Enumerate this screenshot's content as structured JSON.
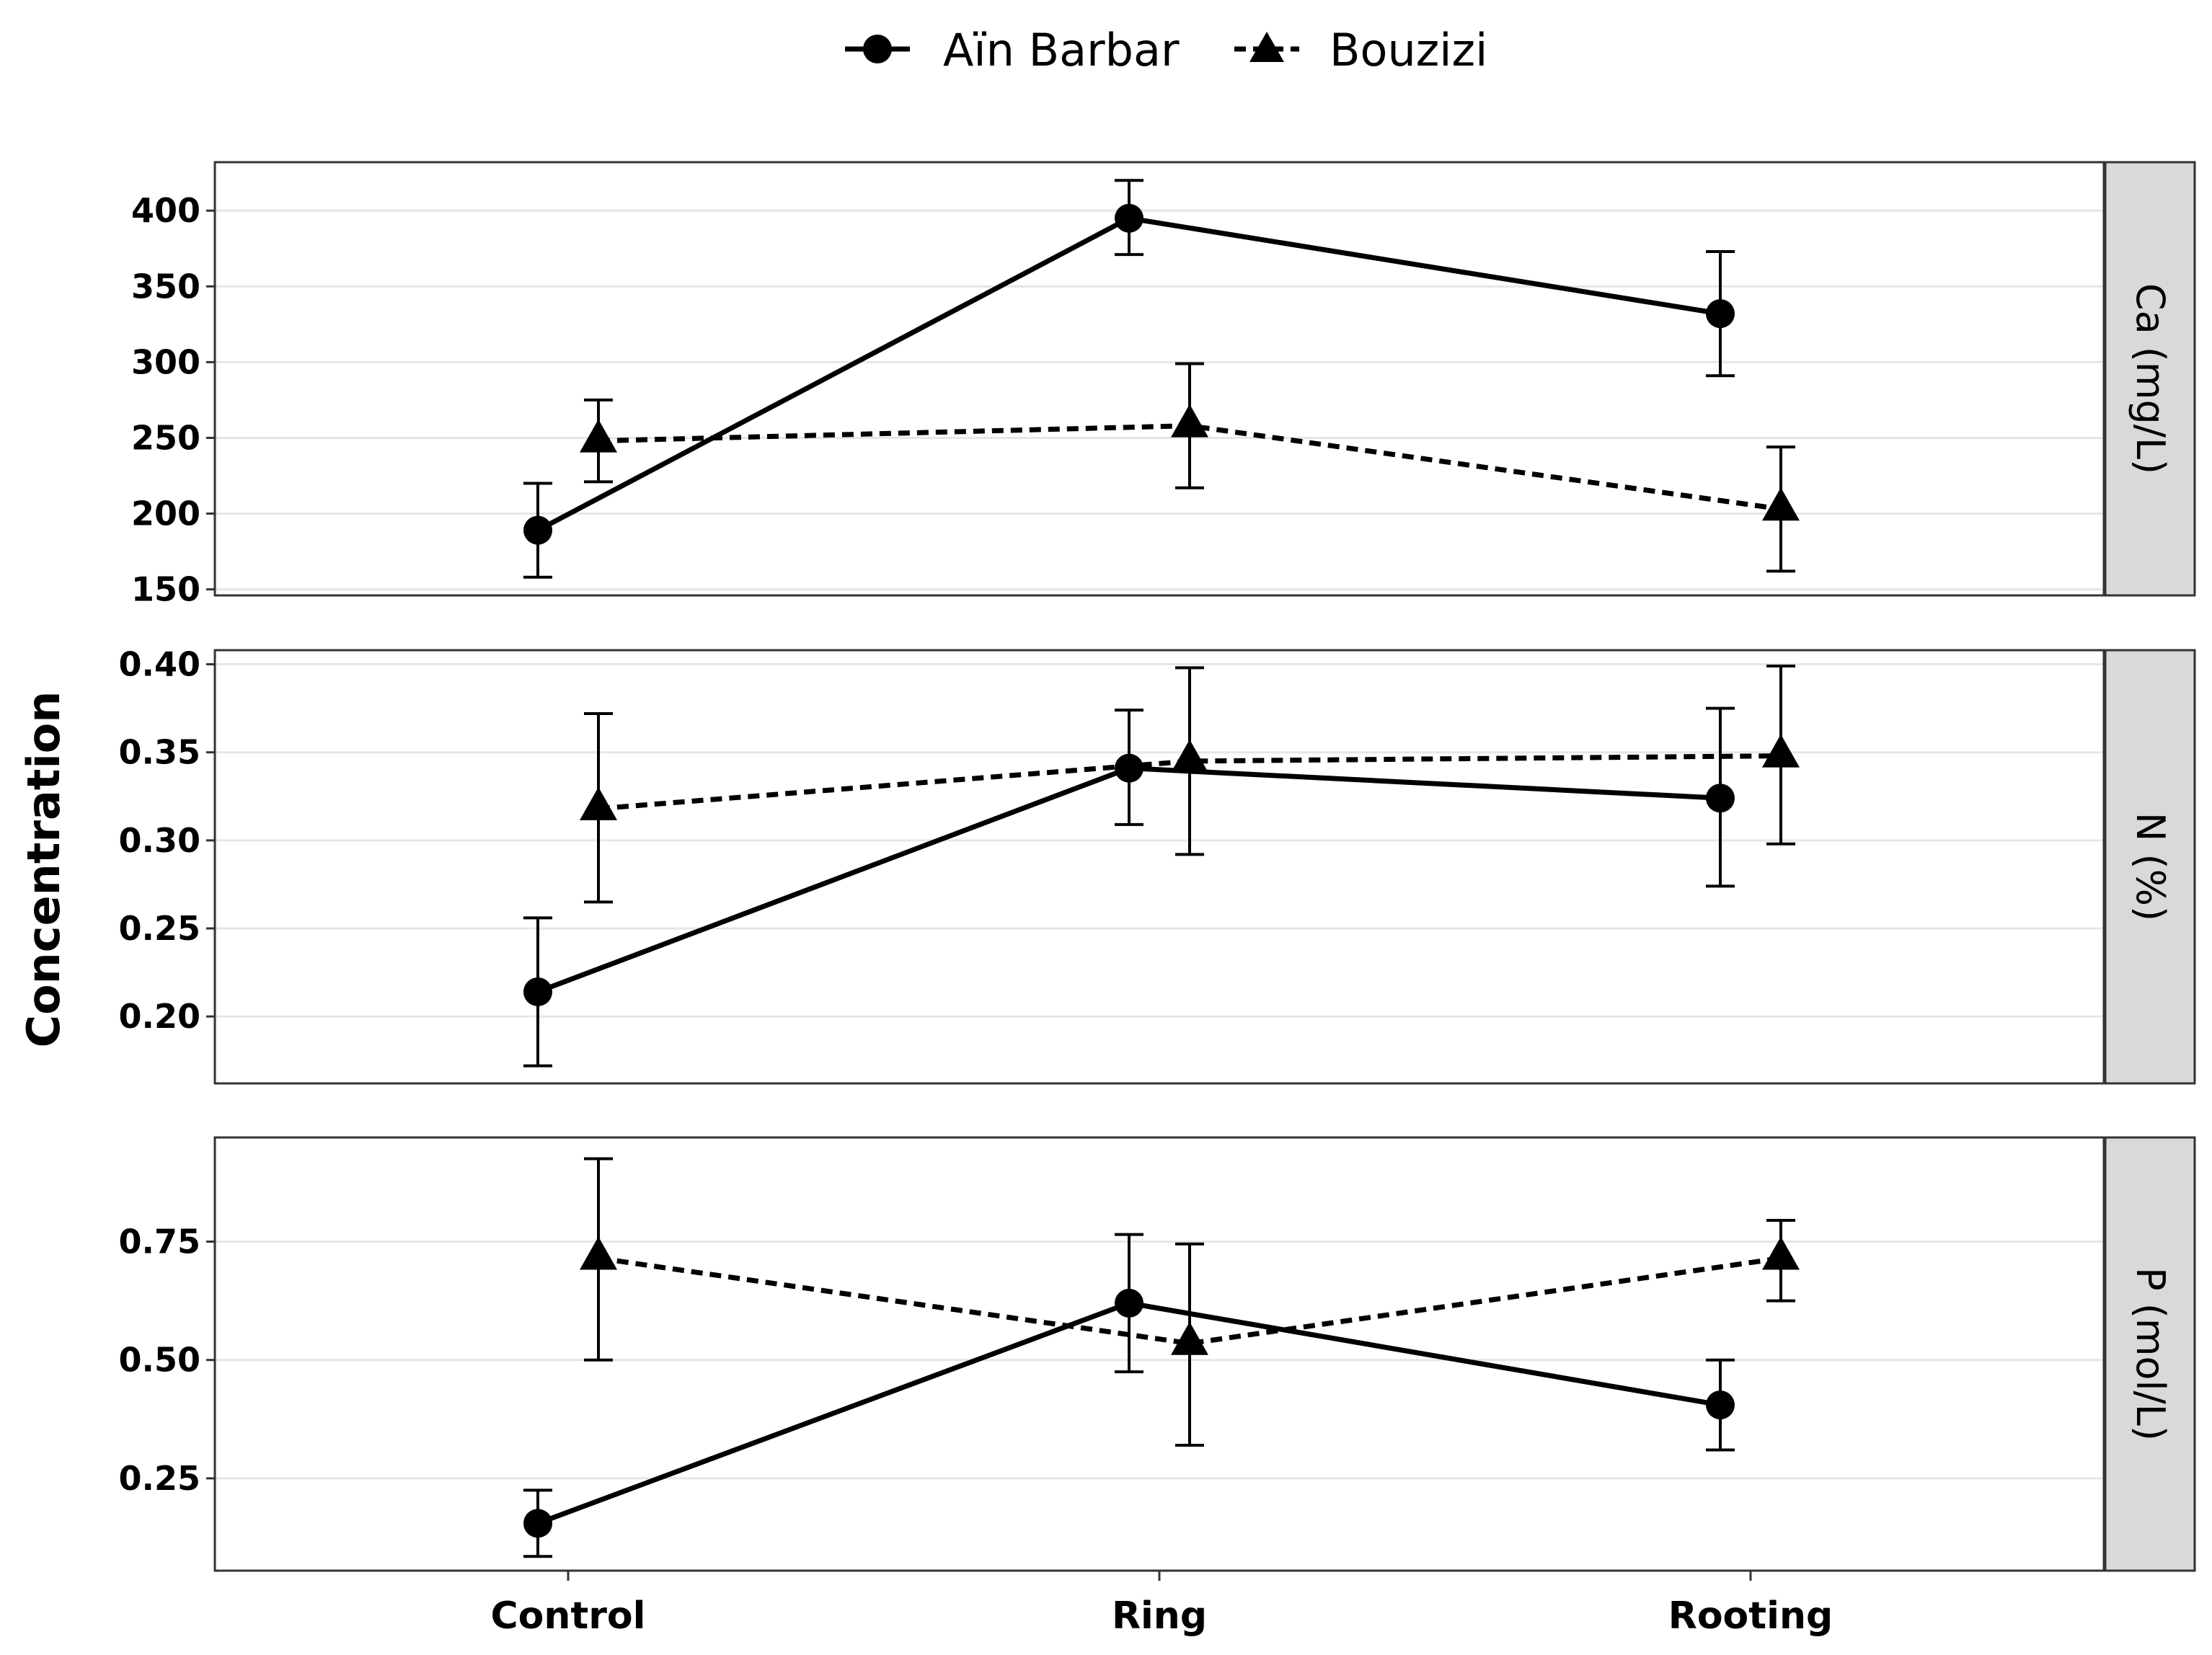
{
  "chart_data": {
    "type": "line",
    "ylabel": "Concentration",
    "categories": [
      "Control",
      "Ring",
      "Rooting"
    ],
    "legend": {
      "position": "top",
      "entries": [
        {
          "name": "Aïn Barbar",
          "marker": "circle",
          "line": "solid"
        },
        {
          "name": "Bouzizi",
          "marker": "triangle",
          "line": "dashed"
        }
      ]
    },
    "grid": true,
    "panels": [
      {
        "strip_label": "Ca (mg/L)",
        "ylim": [
          146,
          432
        ],
        "yticks": [
          150,
          200,
          250,
          300,
          350,
          400
        ],
        "ytick_labels": [
          "150",
          "200",
          "250",
          "300",
          "350",
          "400"
        ],
        "series": [
          {
            "name": "Aïn Barbar",
            "values": [
              189,
              395,
              332
            ],
            "lower": [
              158,
              371,
              291
            ],
            "upper": [
              220,
              420,
              373
            ]
          },
          {
            "name": "Bouzizi",
            "values": [
              248,
              258,
              203
            ],
            "lower": [
              221,
              217,
              162
            ],
            "upper": [
              275,
              299,
              244
            ]
          }
        ]
      },
      {
        "strip_label": "N (%)",
        "ylim": [
          0.162,
          0.408
        ],
        "yticks": [
          0.2,
          0.25,
          0.3,
          0.35,
          0.4
        ],
        "ytick_labels": [
          "0.20",
          "0.25",
          "0.30",
          "0.35",
          "0.40"
        ],
        "series": [
          {
            "name": "Aïn Barbar",
            "values": [
              0.214,
              0.341,
              0.324
            ],
            "lower": [
              0.172,
              0.309,
              0.274
            ],
            "upper": [
              0.256,
              0.374,
              0.375
            ]
          },
          {
            "name": "Bouzizi",
            "values": [
              0.318,
              0.345,
              0.348
            ],
            "lower": [
              0.265,
              0.292,
              0.298
            ],
            "upper": [
              0.372,
              0.398,
              0.399
            ]
          }
        ]
      },
      {
        "strip_label": "P (mol/L)",
        "ylim": [
          0.055,
          0.97
        ],
        "yticks": [
          0.25,
          0.5,
          0.75
        ],
        "ytick_labels": [
          "0.25",
          "0.50",
          "0.75"
        ],
        "series": [
          {
            "name": "Aïn Barbar",
            "values": [
              0.155,
              0.62,
              0.405
            ],
            "lower": [
              0.085,
              0.475,
              0.31
            ],
            "upper": [
              0.225,
              0.765,
              0.5
            ]
          },
          {
            "name": "Bouzizi",
            "values": [
              0.715,
              0.535,
              0.715
            ],
            "lower": [
              0.5,
              0.32,
              0.625
            ],
            "upper": [
              0.925,
              0.745,
              0.795
            ]
          }
        ]
      }
    ]
  }
}
